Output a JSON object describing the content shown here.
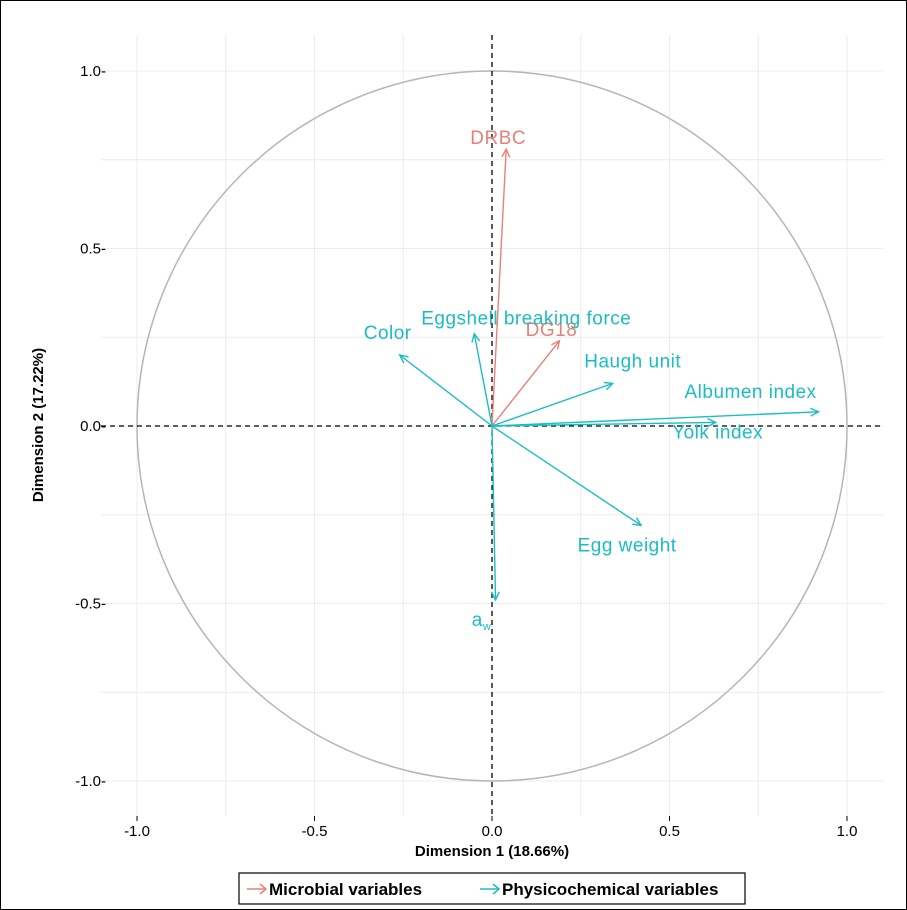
{
  "chart_data": {
    "type": "scatter",
    "subtype": "pca-variable-correlation-circle",
    "xlabel": "Dimension 1 (18.66%)",
    "ylabel": "Dimension 2 (17.22%)",
    "xlim": [
      -1.1,
      1.1
    ],
    "ylim": [
      -1.1,
      1.1
    ],
    "x_ticks": [
      -1.0,
      -0.5,
      0.0,
      0.5,
      1.0
    ],
    "y_ticks": [
      -1.0,
      -0.5,
      0.0,
      0.5,
      1.0
    ],
    "x_tick_labels": [
      "-1.0",
      "-0.5",
      "0.0",
      "0.5",
      "1.0"
    ],
    "y_tick_labels": [
      "-1.0-",
      "-0.5-",
      "0.0-",
      "0.5-",
      "1.0-"
    ],
    "grid": true,
    "unit_circle": true,
    "zero_lines": "dashed",
    "legend_position": "bottom",
    "series": [
      {
        "name": "Microbial variables",
        "color": "#E8807A",
        "points": [
          {
            "label": "DRBC",
            "x": 0.04,
            "y": 0.78
          },
          {
            "label": "DG18",
            "x": 0.19,
            "y": 0.24
          }
        ]
      },
      {
        "name": "Physicochemical variables",
        "color": "#1CBDC2",
        "points": [
          {
            "label": "Eggshell breaking force",
            "x": -0.05,
            "y": 0.26
          },
          {
            "label": "Color",
            "x": -0.26,
            "y": 0.2
          },
          {
            "label": "Haugh unit",
            "x": 0.34,
            "y": 0.12
          },
          {
            "label": "Albumen index",
            "x": 0.92,
            "y": 0.04
          },
          {
            "label": "Yolk index",
            "x": 0.63,
            "y": 0.01
          },
          {
            "label": "Egg weight",
            "x": 0.42,
            "y": -0.28
          },
          {
            "label": "a",
            "subscript": "w",
            "x": 0.01,
            "y": -0.49
          }
        ]
      }
    ]
  }
}
